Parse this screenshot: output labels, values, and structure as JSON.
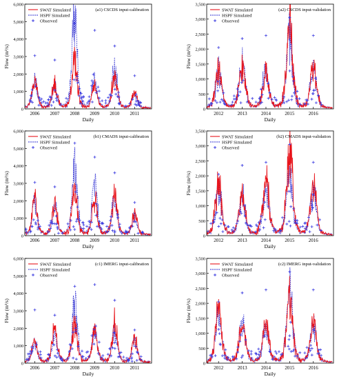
{
  "colors": {
    "swat": "#e8141b",
    "hspf": "#2a2ad0",
    "observed": "#3a3ae0"
  },
  "chart_data": [
    {
      "id": "a1",
      "type": "line",
      "title": "(a1) CSCDS input-calibration",
      "xlabel": "Daily",
      "ylabel": "Flow (m³/s)",
      "ylim": [
        0,
        6000
      ],
      "yticks": [
        "0",
        "1,000",
        "2,000",
        "3,000",
        "4,000",
        "5,000",
        "6,000"
      ],
      "categories": [
        "2006",
        "2007",
        "2008",
        "2009",
        "2010",
        "2011"
      ],
      "legend": [
        "SWAT Simulated",
        "HSPF Simulated",
        "Observed"
      ],
      "legend_position": "top-left",
      "series": [
        {
          "name": "SWAT Simulated",
          "peaks": [
            1700,
            1650,
            3200,
            1500,
            2200,
            1100
          ]
        },
        {
          "name": "HSPF Simulated",
          "peaks": [
            1800,
            1500,
            6000,
            1800,
            2600,
            1000
          ]
        },
        {
          "name": "Observed",
          "peaks": [
            3050,
            2800,
            4900,
            4500,
            3600,
            1900
          ]
        }
      ]
    },
    {
      "id": "a2",
      "type": "line",
      "title": "(a2) CSCDS input-validation",
      "xlabel": "Daily",
      "ylabel": "Flow (m³/s)",
      "ylim": [
        0,
        3500
      ],
      "yticks": [
        "0",
        "500",
        "1,000",
        "1,500",
        "2,000",
        "2,500",
        "3,000",
        "3,500"
      ],
      "categories": [
        "2012",
        "2013",
        "2014",
        "2015",
        "2016"
      ],
      "legend": [
        "SWAT Simulated",
        "HSPF Simulated",
        "Observed"
      ],
      "legend_position": "top-left",
      "series": [
        {
          "name": "SWAT Simulated",
          "peaks": [
            1500,
            1600,
            1350,
            3200,
            1650
          ]
        },
        {
          "name": "HSPF Simulated",
          "peaks": [
            1400,
            1800,
            1500,
            2800,
            1550
          ]
        },
        {
          "name": "Observed",
          "peaks": [
            2050,
            2350,
            2450,
            3050,
            2450
          ]
        }
      ]
    },
    {
      "id": "b1",
      "type": "line",
      "title": "(b1) CMADS input-calibration",
      "xlabel": "Daily",
      "ylabel": "Flow (m³/s)",
      "ylim": [
        0,
        6000
      ],
      "yticks": [
        "0",
        "1,000",
        "2,000",
        "3,000",
        "4,000",
        "5,000",
        "6,000"
      ],
      "categories": [
        "2006",
        "2007",
        "2008",
        "2009",
        "2010",
        "2011"
      ],
      "legend": [
        "SWAT Simulated",
        "HSPF Simulated",
        "Observed"
      ],
      "legend_position": "top-left",
      "series": [
        {
          "name": "SWAT Simulated",
          "peaks": [
            2300,
            2100,
            3100,
            2400,
            2800,
            1400
          ]
        },
        {
          "name": "HSPF Simulated",
          "peaks": [
            2100,
            1900,
            5100,
            3300,
            2500,
            1200
          ]
        },
        {
          "name": "Observed",
          "peaks": [
            3050,
            2800,
            5300,
            4500,
            3600,
            1900
          ]
        }
      ]
    },
    {
      "id": "b2",
      "type": "line",
      "title": "(b2) CMADS input-validation",
      "xlabel": "Daily",
      "ylabel": "Flow (m³/s)",
      "ylim": [
        0,
        3500
      ],
      "yticks": [
        "0",
        "500",
        "1,000",
        "1,500",
        "2,000",
        "2,500",
        "3,000",
        "3,500"
      ],
      "categories": [
        "2012",
        "2013",
        "2014",
        "2015",
        "2016"
      ],
      "legend": [
        "SWAT Simulated",
        "HSPF Simulated",
        "Observed"
      ],
      "legend_position": "top-left",
      "series": [
        {
          "name": "SWAT Simulated",
          "peaks": [
            2050,
            1650,
            2150,
            3250,
            1900
          ]
        },
        {
          "name": "HSPF Simulated",
          "peaks": [
            1800,
            1500,
            1800,
            2700,
            1700
          ]
        },
        {
          "name": "Observed",
          "peaks": [
            2050,
            2350,
            2450,
            3050,
            2450
          ]
        }
      ]
    },
    {
      "id": "c1",
      "type": "line",
      "title": "(c1) IMERG input-calibration",
      "xlabel": "Daily",
      "ylabel": "Flow (m³/s)",
      "ylim": [
        0,
        6000
      ],
      "yticks": [
        "0",
        "1,000",
        "2,000",
        "3,000",
        "4,000",
        "5,000",
        "6,000"
      ],
      "categories": [
        "2006",
        "2007",
        "2008",
        "2009",
        "2010",
        "2011"
      ],
      "legend": [
        "SWAT Simulated",
        "HSPF Simulated",
        "Observed"
      ],
      "legend_position": "top-left",
      "series": [
        {
          "name": "SWAT Simulated",
          "peaks": [
            1500,
            2300,
            2700,
            2200,
            2600,
            1700
          ]
        },
        {
          "name": "HSPF Simulated",
          "peaks": [
            1300,
            1600,
            4300,
            2000,
            2200,
            1500
          ]
        },
        {
          "name": "Observed",
          "peaks": [
            3050,
            2750,
            4400,
            4500,
            3600,
            1900
          ]
        }
      ]
    },
    {
      "id": "c2",
      "type": "line",
      "title": "(c2) IMERG input-validation",
      "xlabel": "Daily",
      "ylabel": "Flow (m³/s)",
      "ylim": [
        0,
        3500
      ],
      "yticks": [
        "0",
        "500",
        "1,000",
        "1,500",
        "2,000",
        "2,500",
        "3,000",
        "3,500"
      ],
      "categories": [
        "2012",
        "2013",
        "2014",
        "2015",
        "2016"
      ],
      "legend": [
        "SWAT Simulated",
        "HSPF Simulated",
        "Observed"
      ],
      "legend_position": "top-left",
      "series": [
        {
          "name": "SWAT Simulated",
          "peaks": [
            2100,
            1600,
            1500,
            2600,
            1550
          ]
        },
        {
          "name": "HSPF Simulated",
          "peaks": [
            1900,
            1500,
            1400,
            2700,
            1450
          ]
        },
        {
          "name": "Observed",
          "peaks": [
            2050,
            2350,
            2450,
            3050,
            2450
          ]
        }
      ]
    }
  ]
}
